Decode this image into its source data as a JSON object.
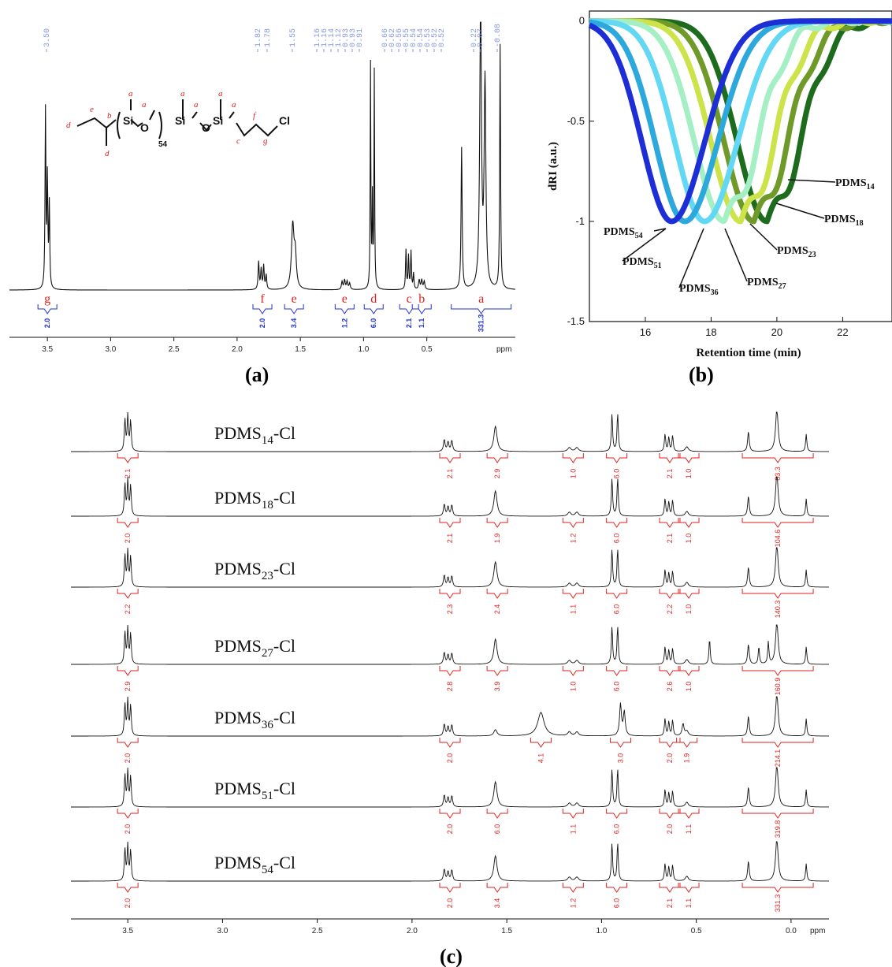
{
  "panels": {
    "a": "(a)",
    "b": "(b)",
    "c": "(c)"
  },
  "molecule": {
    "si": "Si",
    "o": "O",
    "cl": "Cl",
    "repeat": "54",
    "letters": {
      "a": "a",
      "b": "b",
      "c": "c",
      "d": "d",
      "e": "e",
      "f": "f",
      "g": "g"
    }
  },
  "chart_data": [
    {
      "type": "line",
      "name": "panel-a-1H-NMR",
      "xlabel": "ppm",
      "xlim": [
        3.8,
        -0.2
      ],
      "x_ticks": [
        "3.5",
        "3.0",
        "2.5",
        "2.0",
        "1.5",
        "1.0",
        "0.5"
      ],
      "peak_shifts": [
        "3.50",
        "1.82",
        "1.78",
        "1.55",
        "1.16",
        "1.16",
        "1.14",
        "1.12",
        "0.93",
        "0.93",
        "0.91",
        "0.66",
        "0.62",
        "0.56",
        "0.55",
        "0.54",
        "0.54",
        "0.53",
        "0.52",
        "0.52",
        "0.22",
        "0.07",
        "-0.08"
      ],
      "assignments": [
        {
          "label": "g",
          "ppm": 3.5,
          "integral": "2.0"
        },
        {
          "label": "f",
          "ppm": 1.8,
          "integral": "2.0"
        },
        {
          "label": "e",
          "ppm": 1.55,
          "integral": "3.4"
        },
        {
          "label": "e",
          "ppm": 1.15,
          "integral": "1.2"
        },
        {
          "label": "d",
          "ppm": 0.92,
          "integral": "6.0"
        },
        {
          "label": "c",
          "ppm": 0.64,
          "integral": "2.1"
        },
        {
          "label": "b",
          "ppm": 0.54,
          "integral": "1.1"
        },
        {
          "label": "a",
          "ppm": 0.07,
          "integral": "331.3"
        }
      ]
    },
    {
      "type": "line",
      "name": "panel-b-GPC",
      "xlabel": "Retention time (min)",
      "ylabel": "dRI (a.u.)",
      "xlim": [
        14.3,
        23.5
      ],
      "ylim": [
        -1.5,
        0.05
      ],
      "x_ticks": [
        "16",
        "18",
        "20",
        "22"
      ],
      "y_ticks": [
        "0",
        "-0.5",
        "-1",
        "-1.5"
      ],
      "series": [
        {
          "name": "PDMS",
          "sub": "14",
          "color": "#1d6b1d",
          "peak_x": 19.7
        },
        {
          "name": "PDMS",
          "sub": "18",
          "color": "#6f9a2a",
          "peak_x": 19.3
        },
        {
          "name": "PDMS",
          "sub": "23",
          "color": "#cde34a",
          "peak_x": 18.9
        },
        {
          "name": "PDMS",
          "sub": "27",
          "color": "#a4f0c4",
          "peak_x": 18.4
        },
        {
          "name": "PDMS",
          "sub": "36",
          "color": "#62d8f4",
          "peak_x": 17.8
        },
        {
          "name": "PDMS",
          "sub": "51",
          "color": "#2ca8dc",
          "peak_x": 17.2
        },
        {
          "name": "PDMS",
          "sub": "54",
          "color": "#1d2ed6",
          "peak_x": 16.8
        }
      ]
    },
    {
      "type": "line",
      "name": "panel-c-stacked-NMR",
      "xlabel": "ppm",
      "xlim": [
        3.8,
        -0.2
      ],
      "x_ticks": [
        "3.5",
        "3.0",
        "2.5",
        "2.0",
        "1.5",
        "1.0",
        "0.5",
        "0.0"
      ],
      "spectra": [
        {
          "pre": "PDMS",
          "sub": "14",
          "post": "-Cl",
          "integrals": [
            "2.1",
            "2.1",
            "2.9",
            "1.0",
            "6.0",
            "2.1",
            "1.0",
            "83.3"
          ]
        },
        {
          "pre": "PDMS",
          "sub": "18",
          "post": "-Cl",
          "integrals": [
            "2.0",
            "2.1",
            "1.9",
            "1.2",
            "6.0",
            "2.1",
            "1.0",
            "104.6"
          ]
        },
        {
          "pre": "PDMS",
          "sub": "23",
          "post": "-Cl",
          "integrals": [
            "2.2",
            "2.3",
            "2.4",
            "1.1",
            "6.0",
            "2.2",
            "1.0",
            "140.3"
          ]
        },
        {
          "pre": "PDMS",
          "sub": "27",
          "post": "-Cl",
          "integrals": [
            "2.9",
            "2.8",
            "3.9",
            "1.0",
            "6.0",
            "2.6",
            "1.0",
            "160.9"
          ]
        },
        {
          "pre": "PDMS",
          "sub": "36",
          "post": "-Cl",
          "integrals": [
            "2.0",
            "2.0",
            "4.1",
            "3.0",
            "2.0",
            "1.9",
            "214.1"
          ]
        },
        {
          "pre": "PDMS",
          "sub": "51",
          "post": "-Cl",
          "integrals": [
            "2.0",
            "2.0",
            "6.0",
            "1.1",
            "6.0",
            "2.0",
            "1.1",
            "319.8"
          ]
        },
        {
          "pre": "PDMS",
          "sub": "54",
          "post": "-Cl",
          "integrals": [
            "2.0",
            "2.0",
            "3.4",
            "1.2",
            "6.0",
            "2.1",
            "1.1",
            "331.3"
          ]
        }
      ]
    }
  ]
}
